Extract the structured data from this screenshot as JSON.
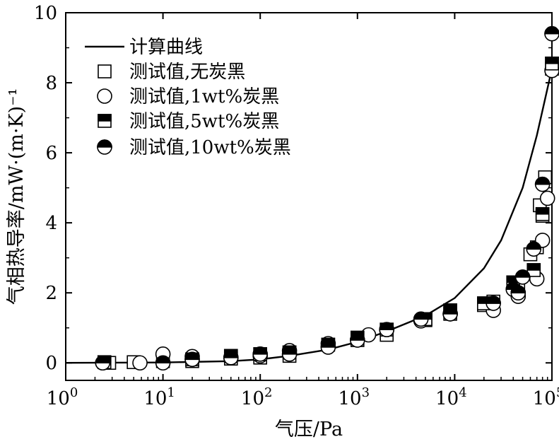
{
  "chart_data": {
    "type": "scatter",
    "xlabel": "气压/Pa",
    "ylabel": "气相热导率/mW·(m·K)⁻¹",
    "x_scale": "log",
    "xlim": [
      1,
      100000
    ],
    "ylim": [
      -0.5,
      10
    ],
    "x_ticks": [
      {
        "value": 1,
        "base": "10",
        "exp": "0"
      },
      {
        "value": 10,
        "base": "10",
        "exp": "1"
      },
      {
        "value": 100,
        "base": "10",
        "exp": "2"
      },
      {
        "value": 1000,
        "base": "10",
        "exp": "3"
      },
      {
        "value": 10000,
        "base": "10",
        "exp": "4"
      },
      {
        "value": 100000,
        "base": "10",
        "exp": "5"
      }
    ],
    "y_ticks": [
      "0",
      "2",
      "4",
      "6",
      "8",
      "10"
    ],
    "legend_position": "top-left",
    "grid": false,
    "series": [
      {
        "name": "计算曲线",
        "kind": "line",
        "x": [
          1,
          10,
          50,
          100,
          200,
          500,
          1000,
          2000,
          5000,
          10000,
          20000,
          30000,
          50000,
          70000,
          100000
        ],
        "y": [
          0,
          0.01,
          0.05,
          0.1,
          0.2,
          0.38,
          0.6,
          0.9,
          1.35,
          1.85,
          2.7,
          3.5,
          5.0,
          6.5,
          8.4
        ]
      },
      {
        "name": "测试值,无炭黑",
        "kind": "scatter",
        "marker": "open-square",
        "x": [
          2.8,
          5,
          10,
          20,
          50,
          100,
          200,
          1000,
          2000,
          5000,
          9000,
          20000,
          25000,
          45000,
          60000,
          70000,
          75000,
          80000,
          85000,
          100000
        ],
        "y": [
          0.0,
          0.02,
          0.05,
          0.05,
          0.12,
          0.15,
          0.2,
          0.65,
          0.8,
          1.22,
          1.4,
          1.65,
          1.75,
          2.1,
          3.1,
          3.3,
          4.5,
          4.2,
          5.3,
          8.4
        ]
      },
      {
        "name": "测试值,1wt%炭黑",
        "kind": "scatter",
        "marker": "open-circle",
        "x": [
          2.4,
          5.8,
          10,
          20,
          50,
          100,
          200,
          500,
          1300,
          2000,
          4500,
          9000,
          25000,
          45000,
          70000,
          80000,
          90000,
          100000
        ],
        "y": [
          0.0,
          0.0,
          0.25,
          0.18,
          0.15,
          0.2,
          0.35,
          0.55,
          0.8,
          0.95,
          1.2,
          1.4,
          1.5,
          1.9,
          2.4,
          3.5,
          4.7,
          8.35
        ]
      },
      {
        "name": "测试值,5wt%炭黑",
        "kind": "scatter",
        "marker": "half-filled-square",
        "x": [
          2.5,
          20,
          50,
          100,
          200,
          500,
          1000,
          2000,
          5000,
          9000,
          20000,
          40000,
          65000,
          80000,
          100000
        ],
        "y": [
          0.02,
          0.1,
          0.2,
          0.25,
          0.3,
          0.52,
          0.72,
          0.95,
          1.25,
          1.5,
          1.7,
          2.3,
          2.65,
          4.25,
          8.55
        ]
      },
      {
        "name": "测试值,10wt%炭黑",
        "kind": "scatter",
        "marker": "half-filled-circle",
        "x": [
          2.4,
          10,
          20,
          50,
          100,
          200,
          500,
          1000,
          2000,
          4500,
          9000,
          25000,
          40000,
          45000,
          50000,
          65000,
          80000,
          100000
        ],
        "y": [
          0.0,
          0.0,
          0.1,
          0.15,
          0.25,
          0.25,
          0.45,
          0.65,
          0.95,
          1.25,
          1.4,
          1.7,
          2.1,
          2.0,
          2.45,
          3.25,
          5.1,
          9.4
        ]
      }
    ]
  }
}
